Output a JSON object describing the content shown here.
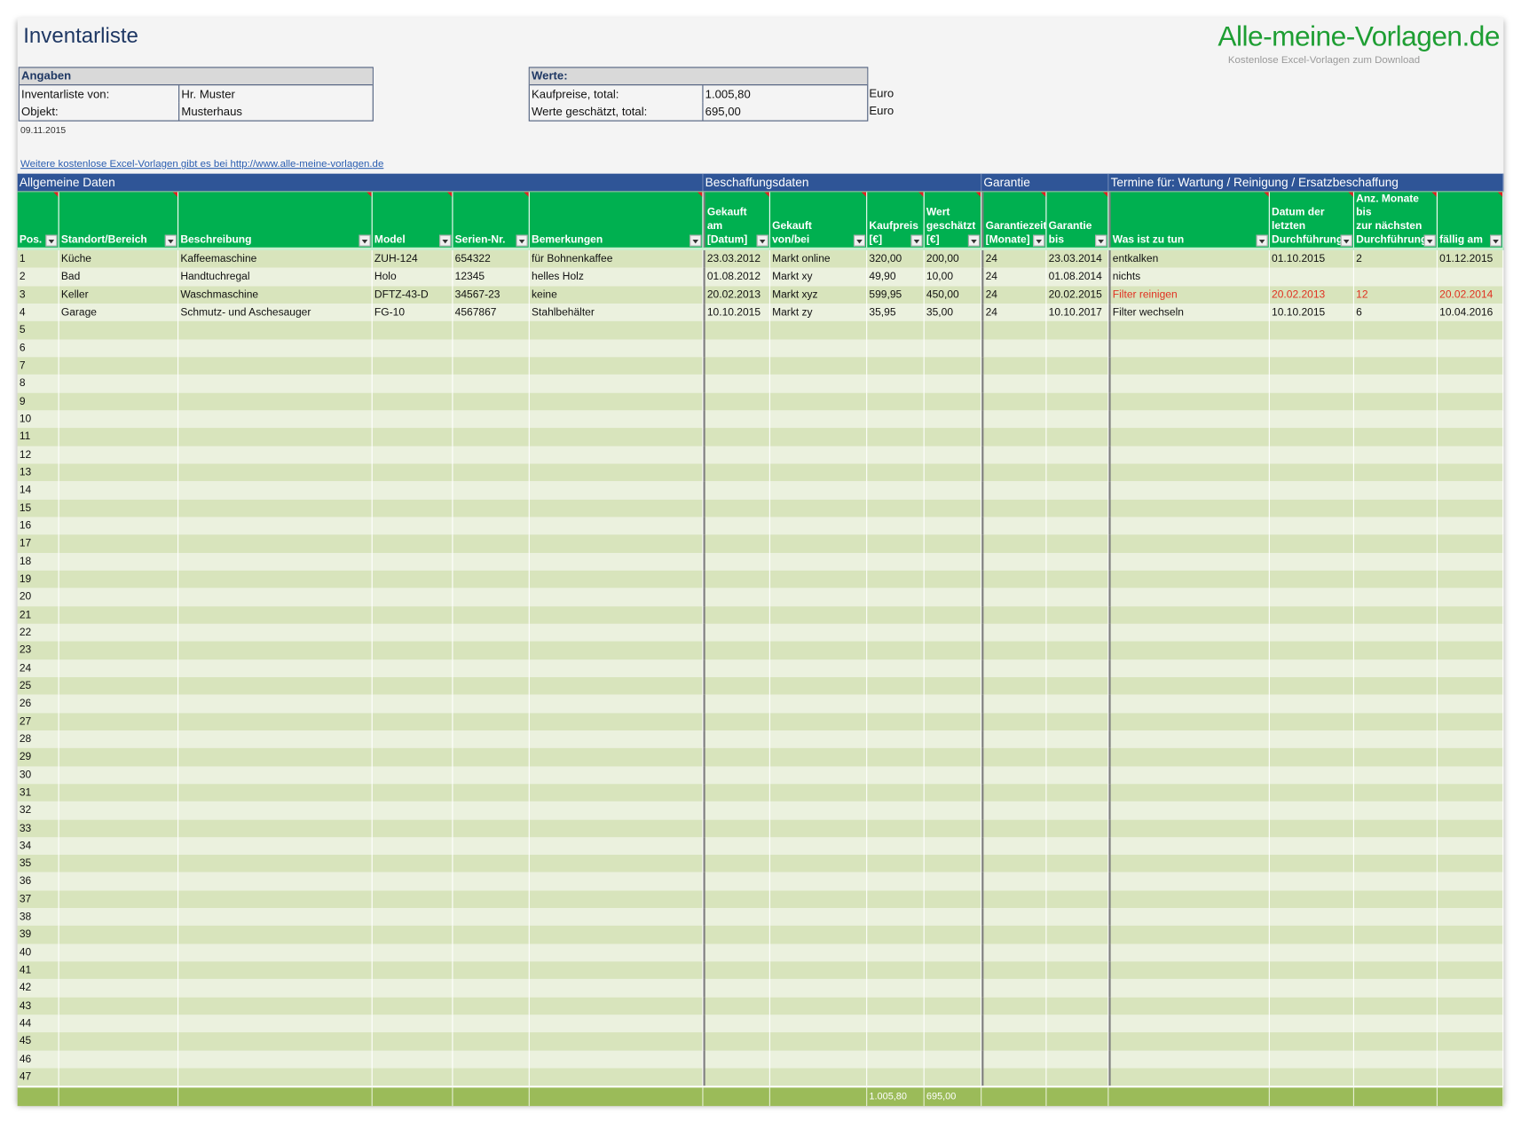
{
  "title": "Inventarliste",
  "logo": {
    "text": "Alle-meine-Vorlagen.de",
    "subtitle": "Kostenlose Excel-Vorlagen zum Download",
    "color": "#1e9e33"
  },
  "angaben": {
    "header": "Angaben",
    "rows": [
      {
        "label": "Inventarliste von:",
        "value": "Hr. Muster"
      },
      {
        "label": "Objekt:",
        "value": "Musterhaus"
      }
    ]
  },
  "werte": {
    "header": "Werte:",
    "rows": [
      {
        "label": "Kaufpreise, total:",
        "value": "1.005,80",
        "unit": "Euro"
      },
      {
        "label": "Werte geschätzt, total:",
        "value": "695,00",
        "unit": "Euro"
      }
    ]
  },
  "date": "09.11.2015",
  "link": "Weitere kostenlose Excel-Vorlagen gibt es bei http://www.alle-meine-vorlagen.de",
  "groups": [
    "Allgemeine Daten",
    "Beschaffungsdaten",
    "Garantie",
    "Termine für: Wartung / Reinigung / Ersatzbeschaffung"
  ],
  "columns": [
    "Pos.",
    "Standort/Bereich",
    "Beschreibung",
    "Model",
    "Serien-Nr.",
    "Bemerkungen",
    "Gekauft am\n[Datum]",
    "Gekauft\nvon/bei",
    "Kaufpreis\n[€]",
    "Wert\ngeschätzt\n[€]",
    "Garantiezeit\n[Monate]",
    "Garantie\nbis",
    "Was ist zu tun",
    "Datum der\nletzten\nDurchführung",
    "Anz. Monate bis\nzur nächsten\nDurchführung",
    "fällig am"
  ],
  "rows": [
    {
      "cells": [
        "1",
        "Küche",
        "Kaffeemaschine",
        "ZUH-124",
        "654322",
        "für Bohnenkaffee",
        "23.03.2012",
        "Markt online",
        "320,00",
        "200,00",
        "24",
        "23.03.2014",
        "entkalken",
        "01.10.2015",
        "2",
        "01.12.2015"
      ],
      "highlight": []
    },
    {
      "cells": [
        "2",
        "Bad",
        "Handtuchregal",
        "Holo",
        "12345",
        "helles Holz",
        "01.08.2012",
        "Markt xy",
        "49,90",
        "10,00",
        "24",
        "01.08.2014",
        "nichts",
        "",
        "",
        ""
      ],
      "highlight": []
    },
    {
      "cells": [
        "3",
        "Keller",
        "Waschmaschine",
        "DFTZ-43-D",
        "34567-23",
        "keine",
        "20.02.2013",
        "Markt xyz",
        "599,95",
        "450,00",
        "24",
        "20.02.2015",
        "Filter reinigen",
        "20.02.2013",
        "12",
        "20.02.2014"
      ],
      "highlight": [
        12,
        13,
        14,
        15
      ]
    },
    {
      "cells": [
        "4",
        "Garage",
        "Schmutz- und Aschesauger",
        "FG-10",
        "4567867",
        "Stahlbehälter",
        "10.10.2015",
        "Markt zy",
        "35,95",
        "35,00",
        "24",
        "10.10.2017",
        "Filter wechseln",
        "10.10.2015",
        "6",
        "10.04.2016"
      ],
      "highlight": []
    }
  ],
  "empty_row_numbers": [
    "5",
    "6",
    "7",
    "8",
    "9",
    "10",
    "11",
    "12",
    "13",
    "14",
    "15",
    "16",
    "17",
    "18",
    "19",
    "20",
    "21",
    "22",
    "23",
    "24",
    "25",
    "26",
    "27",
    "28",
    "29",
    "30",
    "31",
    "32",
    "33",
    "34",
    "35",
    "36",
    "37",
    "38",
    "39",
    "40",
    "41",
    "42",
    "43",
    "44",
    "45",
    "46",
    "47"
  ],
  "totals": {
    "kaufpreis": "1.005,80",
    "wert": "695,00"
  },
  "colors": {
    "group_header": "#2f5597",
    "column_header": "#00b050",
    "row_odd": "#d8e4bc",
    "row_even": "#ebf1de",
    "footer": "#9bbb59",
    "highlight": "#e03020"
  }
}
